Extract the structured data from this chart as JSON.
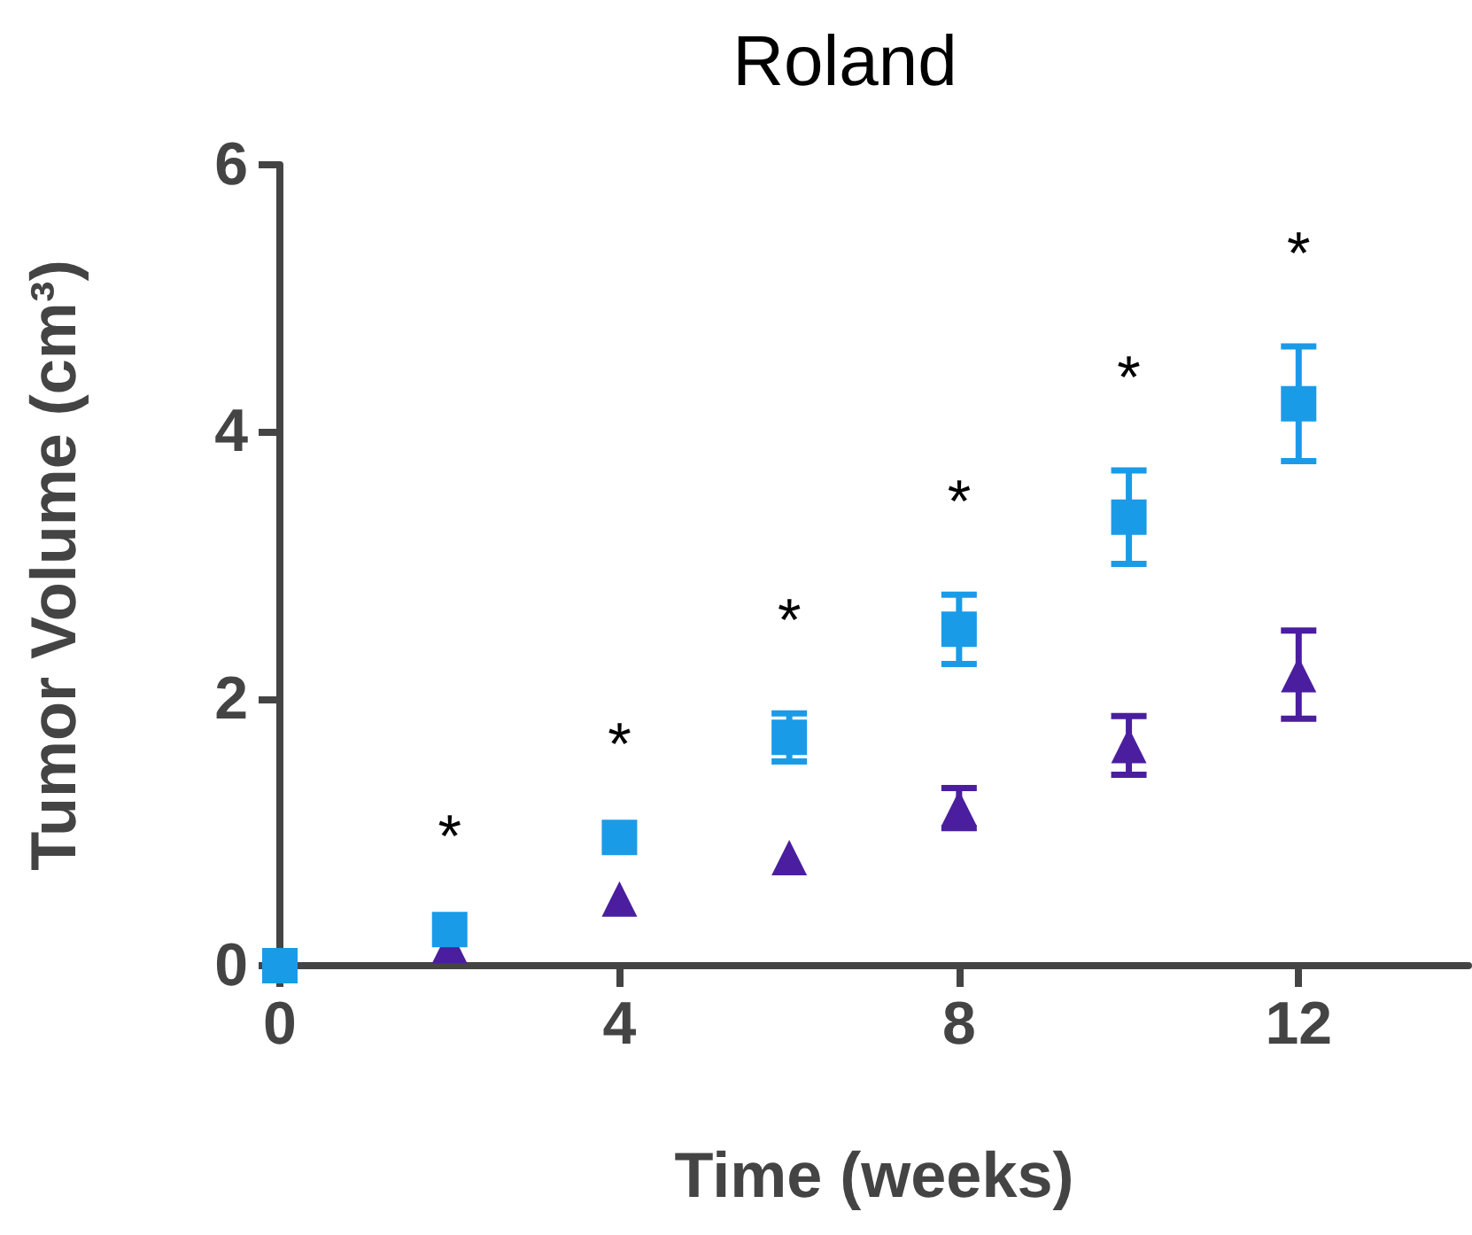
{
  "chart_data": {
    "type": "scatter",
    "title": "Roland",
    "xlabel": "Time (weeks)",
    "ylabel": "Tumor Volume (cm³)",
    "xlim": [
      0,
      14
    ],
    "xticks": [
      0,
      4,
      8,
      12
    ],
    "ylim": [
      0,
      6
    ],
    "yticks": [
      0,
      2,
      4,
      6
    ],
    "grid": false,
    "series": [
      {
        "color": "#4a1e9e",
        "marker": "triangle",
        "x": [
          2,
          4,
          6,
          8,
          10,
          12
        ],
        "values": [
          0.15,
          0.5,
          0.81,
          1.18,
          1.65,
          2.18
        ],
        "errors": [
          null,
          null,
          null,
          0.15,
          0.22,
          0.33
        ]
      },
      {
        "color": "#1a9be8",
        "marker": "square",
        "x": [
          0,
          2,
          4,
          6,
          8,
          10,
          12
        ],
        "values": [
          0,
          0.27,
          0.96,
          1.71,
          2.52,
          3.36,
          4.21
        ],
        "errors": [
          null,
          null,
          null,
          0.18,
          0.26,
          0.35,
          0.43
        ]
      }
    ],
    "annotations": [
      "*",
      "*",
      "*",
      "*",
      "*",
      "*"
    ]
  }
}
